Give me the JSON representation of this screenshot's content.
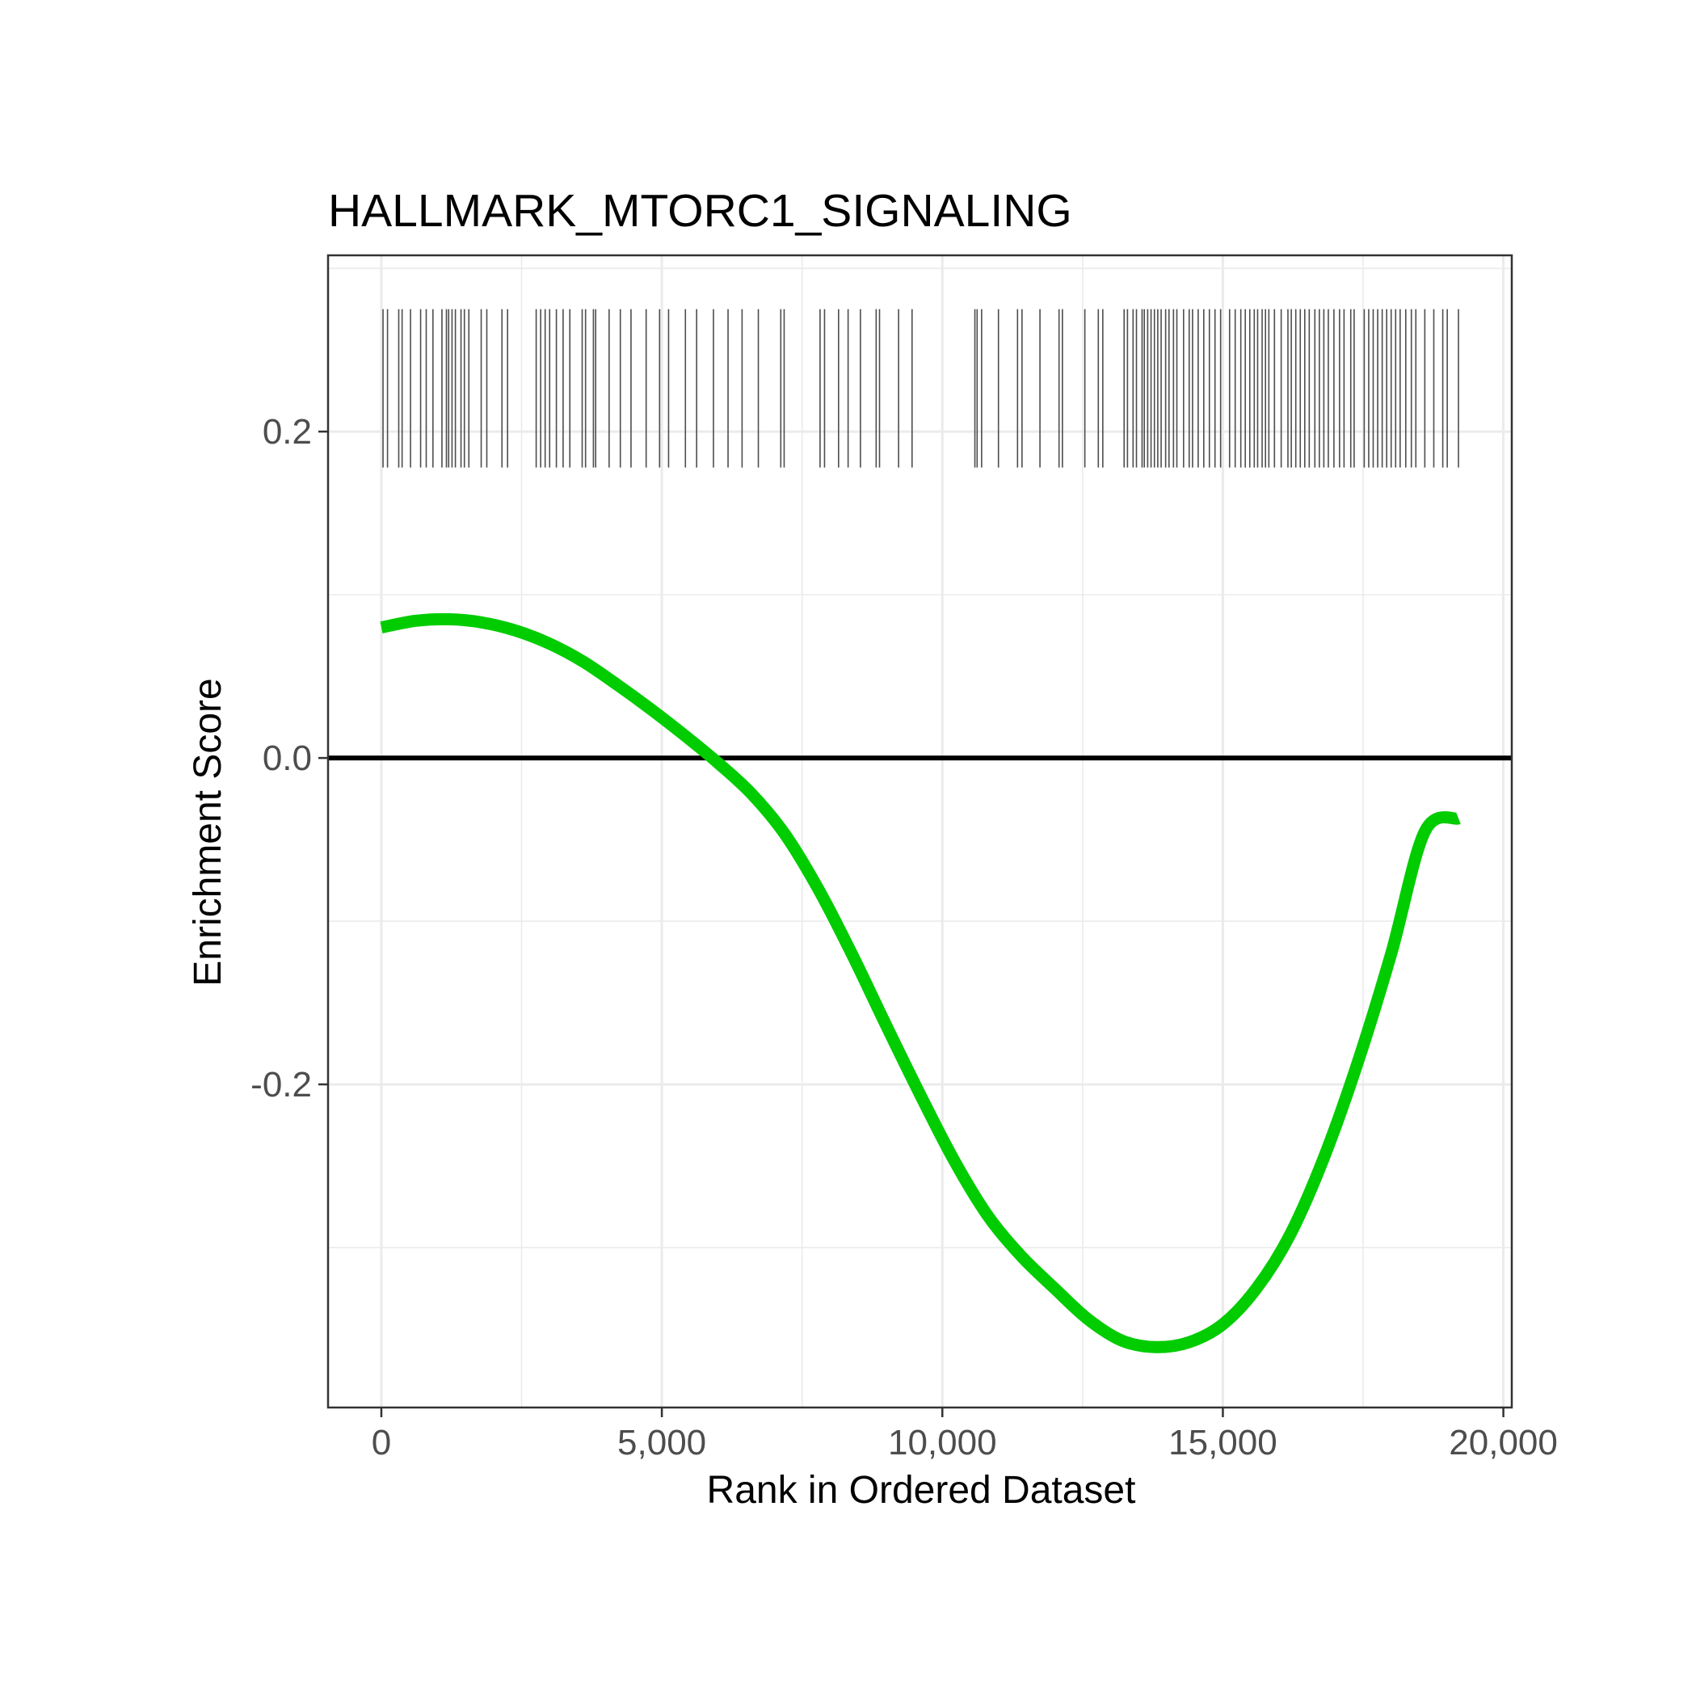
{
  "chart_data": {
    "type": "line",
    "title": "HALLMARK_MTORC1_SIGNALING",
    "xlabel": "Rank in Ordered Dataset",
    "ylabel": "Enrichment Score",
    "xlim": [
      -950,
      20150
    ],
    "ylim": [
      -0.398,
      0.308
    ],
    "x_ticks": [
      0,
      5000,
      10000,
      15000,
      20000
    ],
    "x_tick_labels": [
      "0",
      "5,000",
      "10,000",
      "15,000",
      "20,000"
    ],
    "y_ticks": [
      0.2,
      0.0,
      -0.2
    ],
    "y_tick_labels": [
      "0.2",
      "0.0",
      "-0.2"
    ],
    "x_minor_gridlines": [
      2500,
      7500,
      12500,
      17500
    ],
    "y_minor_gridlines": [
      0.3,
      0.1,
      -0.1,
      -0.3
    ],
    "grid": true,
    "legend": "none",
    "reference_line": {
      "y": 0.0,
      "color": "#000000"
    },
    "series": [
      {
        "color": "#00cc00",
        "x": [
          0,
          600,
          1200,
          1800,
          2400,
          3000,
          3600,
          4200,
          4800,
          5400,
          6000,
          6600,
          7200,
          7800,
          8400,
          9000,
          9600,
          10200,
          10800,
          11400,
          12000,
          12600,
          13200,
          13800,
          14400,
          15000,
          15600,
          16200,
          16800,
          17400,
          18000,
          18600,
          19200
        ],
        "y": [
          0.08,
          0.084,
          0.085,
          0.083,
          0.078,
          0.07,
          0.059,
          0.045,
          0.03,
          0.014,
          -0.003,
          -0.022,
          -0.047,
          -0.081,
          -0.121,
          -0.164,
          -0.206,
          -0.246,
          -0.28,
          -0.305,
          -0.325,
          -0.344,
          -0.357,
          -0.361,
          -0.358,
          -0.347,
          -0.325,
          -0.292,
          -0.245,
          -0.187,
          -0.12,
          -0.045,
          -0.037
        ]
      }
    ],
    "gene_hits": {
      "color": "#4d4d4d",
      "y_range": [
        0.178,
        0.275
      ],
      "positions": [
        30,
        110,
        310,
        370,
        520,
        700,
        800,
        920,
        1080,
        1160,
        1200,
        1260,
        1320,
        1420,
        1480,
        1560,
        1780,
        1880,
        2150,
        2250,
        2760,
        2840,
        2920,
        3000,
        3120,
        3240,
        3360,
        3580,
        3640,
        3780,
        3820,
        4060,
        4260,
        4450,
        4720,
        4960,
        5120,
        5420,
        5620,
        5920,
        6180,
        6430,
        6720,
        7120,
        7180,
        7820,
        7900,
        8150,
        8320,
        8540,
        8820,
        8880,
        9220,
        9460,
        10580,
        10620,
        10700,
        11000,
        11340,
        11420,
        11740,
        12080,
        12140,
        12540,
        12780,
        12860,
        13240,
        13300,
        13400,
        13460,
        13560,
        13600,
        13660,
        13720,
        13780,
        13840,
        13900,
        13980,
        14040,
        14120,
        14180,
        14300,
        14400,
        14460,
        14560,
        14660,
        14760,
        14860,
        14960,
        15120,
        15220,
        15320,
        15400,
        15480,
        15560,
        15620,
        15700,
        15760,
        15820,
        15920,
        16040,
        16160,
        16220,
        16300,
        16380,
        16460,
        16540,
        16640,
        16720,
        16800,
        16880,
        16980,
        17080,
        17160,
        17280,
        17340,
        17520,
        17600,
        17680,
        17760,
        17840,
        17920,
        18000,
        18080,
        18160,
        18260,
        18360,
        18440,
        18600,
        18760,
        18920,
        19000,
        19200
      ]
    }
  }
}
